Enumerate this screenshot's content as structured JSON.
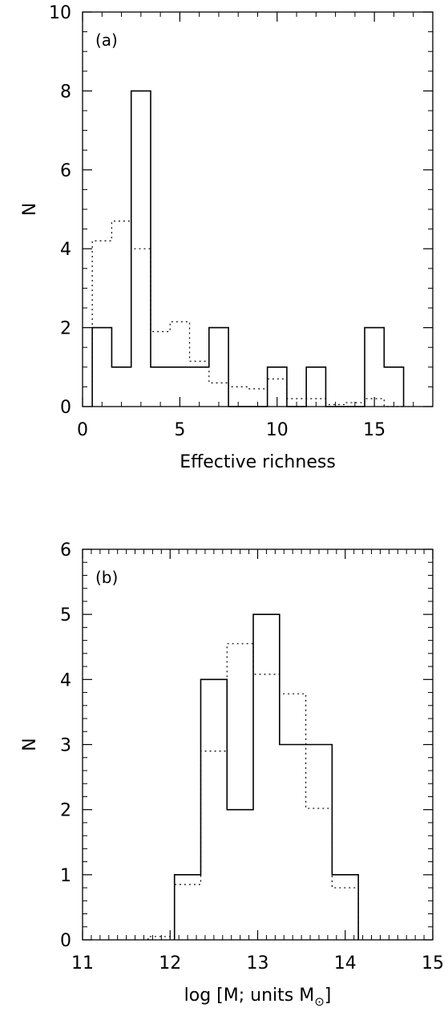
{
  "chart_data": [
    {
      "type": "histogram",
      "panel_label": "(a)",
      "xlabel": "Effective richness",
      "ylabel": "N",
      "xlim": [
        0,
        18
      ],
      "ylim": [
        0,
        10
      ],
      "xticks": [
        0,
        5,
        10,
        15
      ],
      "yticks": [
        0,
        2,
        4,
        6,
        8,
        10
      ],
      "bin_width": 1,
      "series": [
        {
          "style": "solid",
          "bin_centers": [
            1,
            2,
            3,
            4,
            5,
            6,
            7,
            8,
            9,
            10,
            11,
            12,
            13,
            14,
            15,
            16
          ],
          "values": [
            2,
            1,
            8,
            1,
            1,
            1,
            2,
            0,
            0,
            1,
            0,
            1,
            0,
            0,
            2,
            1
          ]
        },
        {
          "style": "dotted",
          "bin_centers": [
            1,
            2,
            3,
            4,
            5,
            6,
            7,
            8,
            9,
            10,
            11,
            12,
            13,
            14,
            15,
            16
          ],
          "values": [
            4.2,
            4.7,
            4.0,
            1.9,
            2.15,
            1.15,
            0.6,
            0.5,
            0.45,
            0.7,
            0.2,
            0.2,
            0.05,
            0.1,
            0.2,
            0.0
          ]
        }
      ]
    },
    {
      "type": "histogram",
      "panel_label": "(b)",
      "xlabel": "log [M; units M",
      "xlabel_subscript": "⊙",
      "xlabel_close": "]",
      "ylabel": "N",
      "xlim": [
        11,
        15
      ],
      "ylim": [
        0,
        6
      ],
      "xticks": [
        11,
        12,
        13,
        14,
        15
      ],
      "yticks": [
        0,
        1,
        2,
        3,
        4,
        5,
        6
      ],
      "bin_width": 0.3,
      "series": [
        {
          "style": "solid",
          "bin_edges": [
            12.05,
            12.35,
            12.65,
            12.95,
            13.25,
            13.55,
            13.85,
            14.15
          ],
          "values": [
            1,
            4,
            2,
            5,
            3,
            3,
            1
          ]
        },
        {
          "style": "dotted",
          "bin_edges": [
            11.75,
            12.05,
            12.35,
            12.65,
            12.95,
            13.25,
            13.55,
            13.85,
            14.15
          ],
          "values": [
            0.05,
            0.85,
            2.9,
            4.55,
            4.08,
            3.78,
            2.02,
            0.8
          ]
        }
      ]
    }
  ]
}
